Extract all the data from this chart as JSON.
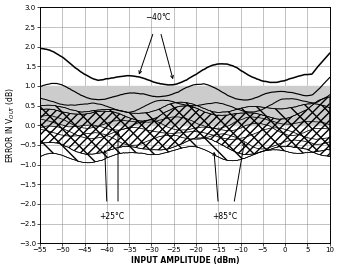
{
  "xlim": [
    -55,
    10
  ],
  "ylim": [
    -3.0,
    3.0
  ],
  "xticks": [
    -55,
    -50,
    -45,
    -40,
    -35,
    -30,
    -25,
    -20,
    -15,
    -10,
    -5,
    0,
    5,
    10
  ],
  "yticks": [
    -3.0,
    -2.5,
    -2.0,
    -1.5,
    -1.0,
    -0.5,
    0.0,
    0.5,
    1.0,
    1.5,
    2.0,
    2.5,
    3.0
  ],
  "xlabel": "INPUT AMPLITUDE (dBm)",
  "ylabel": "ERROR IN V$_{OUT}$ (dB)",
  "gray_band_y1": 0.0,
  "gray_band_y2": 1.0,
  "gray_color": "#cccccc",
  "line_color": "black",
  "bg_color": "white"
}
